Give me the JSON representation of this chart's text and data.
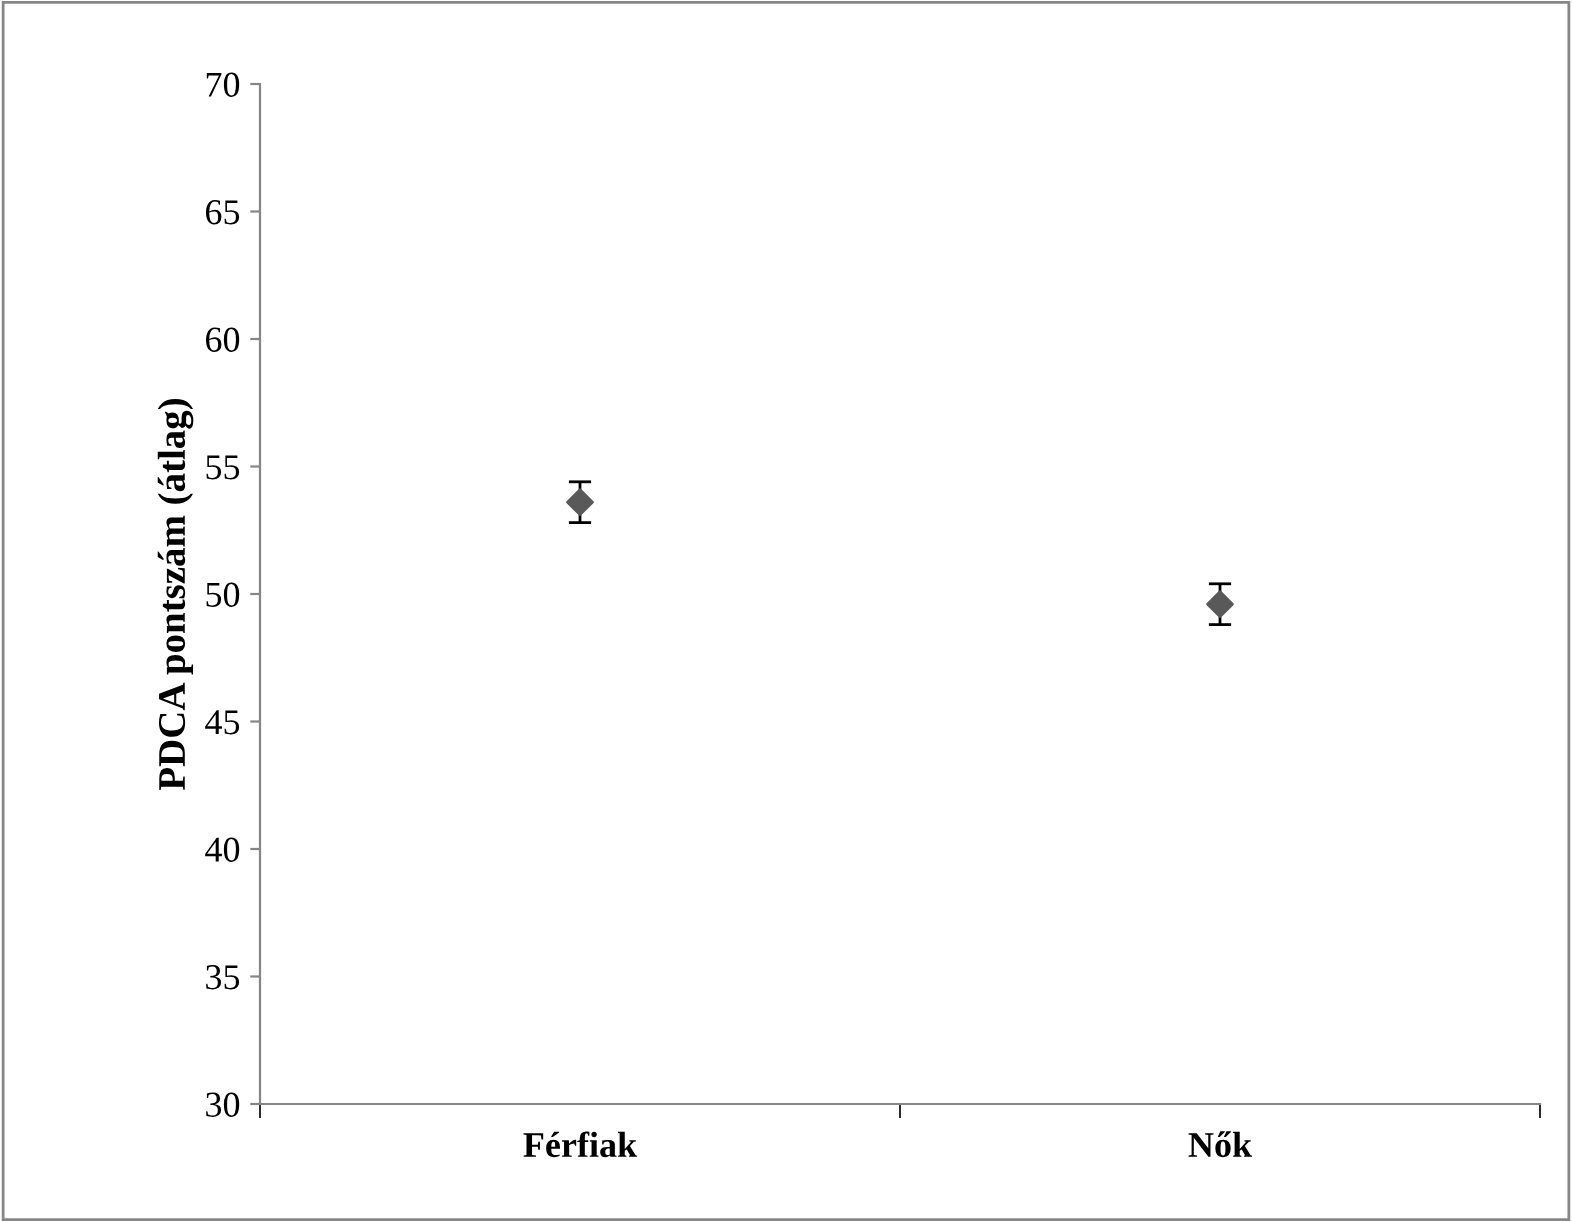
{
  "chart_data": {
    "type": "scatter",
    "ylabel": "PDCA pontszám (átlag)",
    "categories": [
      "Férfiak",
      "Nők"
    ],
    "series": [
      {
        "color": "#595959",
        "values": [
          53.6,
          49.6
        ],
        "errors": [
          0.8,
          0.8
        ]
      }
    ],
    "ylim": [
      30,
      70
    ],
    "yticks": [
      30,
      35,
      40,
      45,
      50,
      55,
      60,
      65,
      70
    ],
    "marker": "diamond",
    "grid": false,
    "legend": false
  }
}
